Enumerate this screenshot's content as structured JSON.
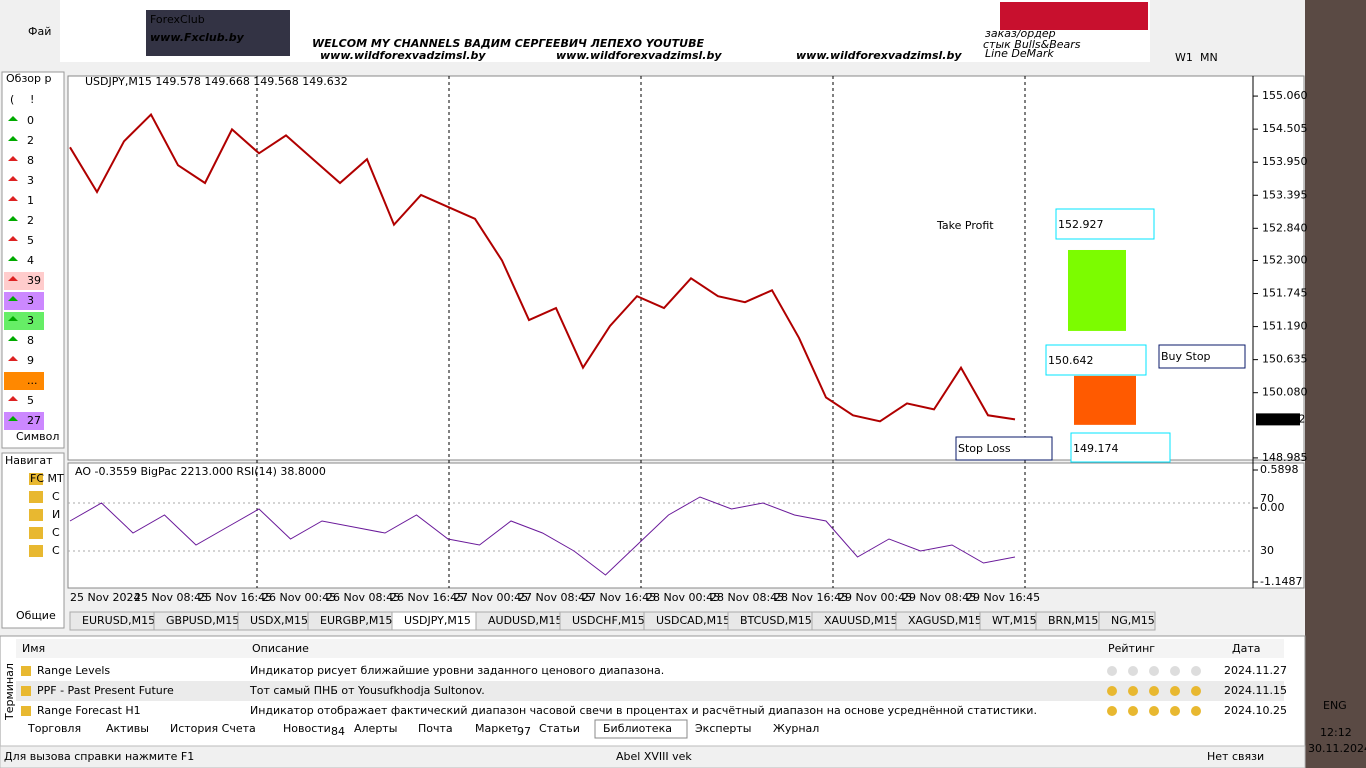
{
  "window": {
    "menu_file": "Фай",
    "timeframes": [
      "W1",
      "MN"
    ]
  },
  "banner": {
    "logo": "ForexClub",
    "site": "www.Fxclub.by",
    "headline": "WELCOM MY CHANNELS ВАДИМ СЕРГЕЕВИЧ ЛЕПЕХО YOUTUBE",
    "urls": [
      "www.wildforexvadzimsl.by",
      "www.wildforexvadzimsl.by",
      "www.wildforexvadzimsl.by"
    ],
    "notes": [
      "заказ/ордер",
      "стык Bulls&Bears",
      "Line DeMark"
    ]
  },
  "market_watch": {
    "title": "Обзор р",
    "head": [
      "(",
      "!"
    ],
    "rows": [
      "0",
      "2",
      "8",
      "3",
      "1",
      "2",
      "5",
      "4",
      "39",
      "3",
      "3",
      "8",
      "9",
      "...",
      "5",
      "27"
    ],
    "column": "Символ"
  },
  "navigator": {
    "title": "Навигат",
    "items": [
      "FC MT",
      "С",
      "И",
      "С",
      "С"
    ],
    "tab": "Общие"
  },
  "chart": {
    "header": "USDJPY,M15  149.578 149.668 149.568 149.632",
    "ylim": [
      148.95,
      155.33
    ],
    "price_ticks": [
      {
        "value": 155.06,
        "label": "155.060"
      },
      {
        "value": 154.505,
        "label": "154.505"
      },
      {
        "value": 153.95,
        "label": "153.950"
      },
      {
        "value": 153.395,
        "label": "153.395"
      },
      {
        "value": 152.84,
        "label": "152.840"
      },
      {
        "value": 152.3,
        "label": "152.300"
      },
      {
        "value": 151.745,
        "label": "151.745"
      },
      {
        "value": 151.19,
        "label": "151.190"
      },
      {
        "value": 150.635,
        "label": "150.635"
      },
      {
        "value": 150.08,
        "label": "150.080"
      },
      {
        "value": 148.985,
        "label": "148.985"
      }
    ],
    "current_price": 149.632,
    "prices": [
      154.2,
      153.45,
      154.3,
      154.75,
      153.9,
      153.6,
      154.5,
      154.1,
      154.4,
      154.0,
      153.6,
      154.0,
      152.9,
      153.4,
      153.2,
      153.0,
      152.3,
      151.3,
      151.5,
      150.5,
      151.2,
      151.7,
      151.5,
      152.0,
      151.7,
      151.6,
      151.8,
      151.0,
      150.0,
      149.7,
      149.6,
      149.9,
      149.8,
      150.5,
      149.7,
      149.632
    ],
    "zones": [
      {
        "top": 152.476,
        "bottom": 151.117,
        "color": "#7cfc00"
      },
      {
        "top": 150.362,
        "bottom": 149.54,
        "color": "#ff5a00"
      }
    ],
    "take_profit": {
      "label": "Take Profit",
      "value": "152.927"
    },
    "buy_stop": {
      "label": "Buy Stop",
      "value": "150.642"
    },
    "stop_loss": {
      "label": "Stop Loss",
      "value": "149.174"
    },
    "time_labels": [
      "25 Nov 2024",
      "25 Nov 08:45",
      "25 Nov 16:45",
      "26 Nov 00:45",
      "26 Nov 08:45",
      "26 Nov 16:45",
      "27 Nov 00:45",
      "27 Nov 08:45",
      "27 Nov 16:45",
      "28 Nov 00:45",
      "28 Nov 08:45",
      "28 Nov 16:45",
      "29 Nov 00:45",
      "29 Nov 08:45",
      "29 Nov 16:45"
    ],
    "indicator": {
      "label": "AO -0.3559  BigPac 2213.000  RSI(14) 38.8000",
      "ao_ylim": [
        -1.1487,
        0.5898
      ],
      "ao_ticks": [
        0.5898,
        {
          "value": 0,
          "label": "0.00"
        },
        -1.1487
      ],
      "rsi_ylim": [
        0,
        100
      ],
      "rsi_ticks": [
        70,
        30
      ],
      "rsi_values": [
        55,
        70,
        45,
        60,
        35,
        50,
        65,
        40,
        55,
        50,
        45,
        60,
        40,
        35,
        55,
        45,
        30,
        10,
        35,
        60,
        75,
        65,
        70,
        60,
        55,
        25,
        40,
        30,
        35,
        20,
        25
      ]
    }
  },
  "symbol_tabs": [
    "EURUSD,M15",
    "GBPUSD,M15",
    "USDX,M15",
    "EURGBP,M15",
    "USDJPY,M15",
    "AUDUSD,M15",
    "USDCHF,M15",
    "USDCAD,M15",
    "BTCUSD,M15",
    "XAUUSD,M15",
    "XAGUSD,M15",
    "WT,M15",
    "BRN,M15",
    "NG,M15"
  ],
  "terminal": {
    "side": "Терминал",
    "headers": [
      "Имя",
      "Описание",
      "Рейтинг",
      "Дата"
    ],
    "rows": [
      {
        "name": "Range Levels",
        "desc": "Индикатор рисует ближайшие уровни заданного ценового диапазона.",
        "date": "2024.11.27"
      },
      {
        "name": "PPF - Past Present Future",
        "desc": "Тот самый ПНБ от Yousufkhodja Sultonov.",
        "date": "2024.11.15"
      },
      {
        "name": "Range Forecast H1",
        "desc": "Индикатор отображает фактический диапазон часовой свечи в процентах и расчётный диапазон на основе усреднённой статистики.",
        "date": "2024.10.25"
      }
    ],
    "tabs": [
      "Торговля",
      "Активы",
      "История Счета",
      "Новости",
      "Алерты",
      "Почта",
      "Маркет",
      "Статьи",
      "Библиотека",
      "Эксперты",
      "Журнал"
    ],
    "badges": {
      "news": "84",
      "market": "97"
    }
  },
  "status": {
    "help": "Для вызова справки нажмите F1",
    "profile": "Abel XVIII vek",
    "connection": "Нет связи"
  },
  "taskbar": {
    "lang": "ENG",
    "time": "12:12",
    "date": "30.11.2024"
  }
}
